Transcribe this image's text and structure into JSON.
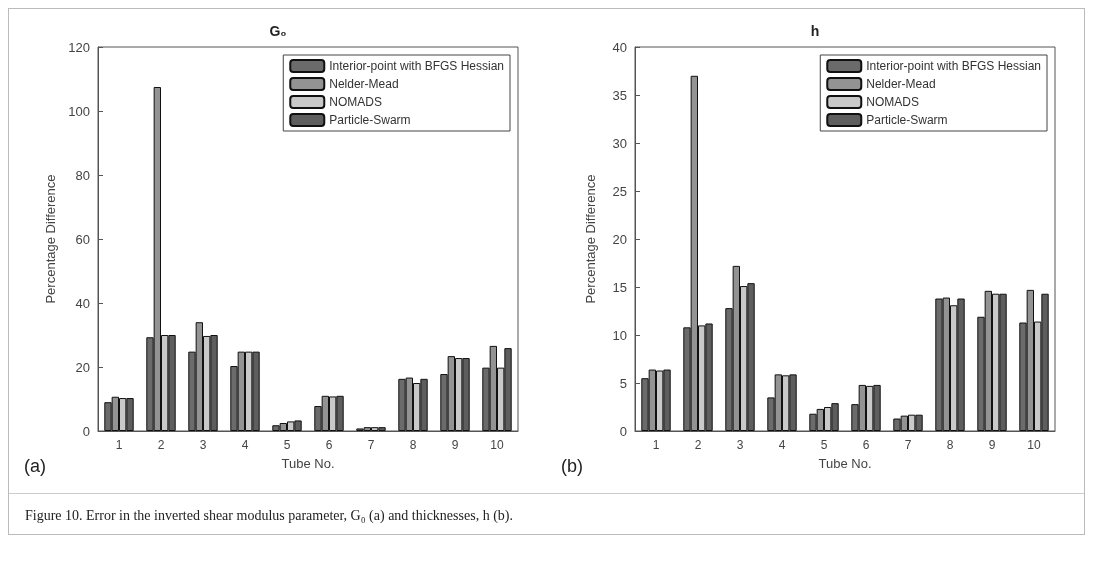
{
  "chart_data": [
    {
      "type": "bar",
      "title": "G₀",
      "xlabel": "Tube No.",
      "ylabel": "Percentage Difference",
      "categories": [
        "1",
        "2",
        "3",
        "4",
        "5",
        "6",
        "7",
        "8",
        "9",
        "10"
      ],
      "series": [
        {
          "name": "Interior-point with BFGS Hessian",
          "color": "#6b6b6b",
          "values": [
            9,
            29.3,
            24.8,
            20.3,
            1.8,
            7.8,
            0.8,
            16.3,
            17.8,
            19.8
          ]
        },
        {
          "name": "Nelder-Mead",
          "color": "#939393",
          "values": [
            10.7,
            107.5,
            34,
            24.8,
            2.5,
            11,
            1.2,
            16.7,
            23.4,
            26.6
          ]
        },
        {
          "name": "NOMADS",
          "color": "#c9c9c9",
          "values": [
            10.3,
            30,
            29.7,
            24.8,
            3,
            10.8,
            1.2,
            15,
            22.8,
            19.8
          ]
        },
        {
          "name": "Particle-Swarm",
          "color": "#5e5e5e",
          "values": [
            10.3,
            30,
            30,
            24.8,
            3.3,
            11,
            1.2,
            16.3,
            22.8,
            25.9
          ]
        }
      ],
      "ylim": [
        0,
        120
      ],
      "yticks": [
        0,
        20,
        40,
        60,
        80,
        100,
        120
      ],
      "legend": "top right",
      "grid": false,
      "annotations": [
        "(a)",
        "Figure 10. Error in the inverted shear modulus parameter, G₀ (a) and thicknesses, h (b)."
      ]
    },
    {
      "type": "bar",
      "title": "h",
      "xlabel": "Tube No.",
      "ylabel": "Percentage Difference",
      "categories": [
        "1",
        "2",
        "3",
        "4",
        "5",
        "6",
        "7",
        "8",
        "9",
        "10"
      ],
      "series": [
        {
          "name": "Interior-point with BFGS Hessian",
          "color": "#6b6b6b",
          "values": [
            5.5,
            10.8,
            12.8,
            3.5,
            1.8,
            2.8,
            1.3,
            13.8,
            11.9,
            11.3
          ]
        },
        {
          "name": "Nelder-Mead",
          "color": "#939393",
          "values": [
            6.4,
            37,
            17.2,
            5.9,
            2.3,
            4.8,
            1.6,
            13.9,
            14.6,
            14.7
          ]
        },
        {
          "name": "NOMADS",
          "color": "#c9c9c9",
          "values": [
            6.3,
            11,
            15.1,
            5.8,
            2.5,
            4.7,
            1.7,
            13.1,
            14.3,
            11.4
          ]
        },
        {
          "name": "Particle-Swarm",
          "color": "#5e5e5e",
          "values": [
            6.4,
            11.2,
            15.4,
            5.9,
            2.9,
            4.8,
            1.7,
            13.8,
            14.3,
            14.3
          ]
        }
      ],
      "ylim": [
        0,
        40
      ],
      "yticks": [
        0,
        5,
        10,
        15,
        20,
        25,
        30,
        35,
        40
      ],
      "legend": "top right",
      "grid": false,
      "annotations": [
        "(b)"
      ]
    }
  ]
}
